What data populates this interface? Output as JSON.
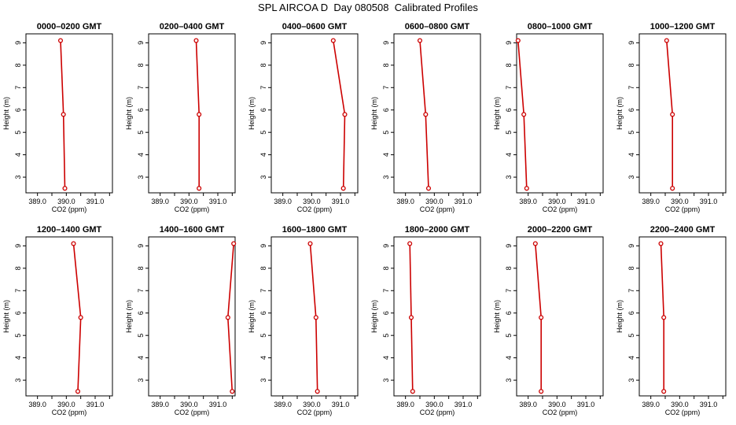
{
  "figure": {
    "title": "SPL AIRCOA D  Day 080508  Calibrated Profiles",
    "line_color": "#cc0000",
    "marker_color": "#cc0000"
  },
  "chart_data": [
    {
      "type": "line",
      "title": "0000–0200 GMT",
      "xlabel": "CO2 (ppm)",
      "ylabel": "Height (m)",
      "xlim": [
        388.6,
        391.6
      ],
      "ylim": [
        2.3,
        9.4
      ],
      "xticks": [
        "389.0",
        "390.0",
        "391.0"
      ],
      "yticks": [
        "3",
        "4",
        "5",
        "6",
        "7",
        "8",
        "9"
      ],
      "series": [
        {
          "x": [
            389.95,
            389.9,
            389.8
          ],
          "y": [
            2.5,
            5.8,
            9.1
          ]
        }
      ]
    },
    {
      "type": "line",
      "title": "0200–0400 GMT",
      "xlabel": "CO2 (ppm)",
      "ylabel": "Height (m)",
      "xlim": [
        388.6,
        391.6
      ],
      "ylim": [
        2.3,
        9.4
      ],
      "xticks": [
        "389.0",
        "390.0",
        "391.0"
      ],
      "yticks": [
        "3",
        "4",
        "5",
        "6",
        "7",
        "8",
        "9"
      ],
      "series": [
        {
          "x": [
            390.35,
            390.35,
            390.25
          ],
          "y": [
            2.5,
            5.8,
            9.1
          ]
        }
      ]
    },
    {
      "type": "line",
      "title": "0400–0600 GMT",
      "xlabel": "CO2 (ppm)",
      "ylabel": "Height (m)",
      "xlim": [
        388.6,
        391.6
      ],
      "ylim": [
        2.3,
        9.4
      ],
      "xticks": [
        "389.0",
        "390.0",
        "391.0"
      ],
      "yticks": [
        "3",
        "4",
        "5",
        "6",
        "7",
        "8",
        "9"
      ],
      "series": [
        {
          "x": [
            391.1,
            391.15,
            390.75
          ],
          "y": [
            2.5,
            5.8,
            9.1
          ]
        }
      ]
    },
    {
      "type": "line",
      "title": "0600–0800 GMT",
      "xlabel": "CO2 (ppm)",
      "ylabel": "Height (m)",
      "xlim": [
        388.6,
        391.6
      ],
      "ylim": [
        2.3,
        9.4
      ],
      "xticks": [
        "389.0",
        "390.0",
        "391.0"
      ],
      "yticks": [
        "3",
        "4",
        "5",
        "6",
        "7",
        "8",
        "9"
      ],
      "series": [
        {
          "x": [
            389.8,
            389.7,
            389.5
          ],
          "y": [
            2.5,
            5.8,
            9.1
          ]
        }
      ]
    },
    {
      "type": "line",
      "title": "0800–1000 GMT",
      "xlabel": "CO2 (ppm)",
      "ylabel": "Height (m)",
      "xlim": [
        388.6,
        391.6
      ],
      "ylim": [
        2.3,
        9.4
      ],
      "xticks": [
        "389.0",
        "390.0",
        "391.0"
      ],
      "yticks": [
        "3",
        "4",
        "5",
        "6",
        "7",
        "8",
        "9"
      ],
      "series": [
        {
          "x": [
            388.95,
            388.85,
            388.65
          ],
          "y": [
            2.5,
            5.8,
            9.1
          ]
        }
      ]
    },
    {
      "type": "line",
      "title": "1000–1200 GMT",
      "xlabel": "CO2 (ppm)",
      "ylabel": "Height (m)",
      "xlim": [
        388.6,
        391.6
      ],
      "ylim": [
        2.3,
        9.4
      ],
      "xticks": [
        "389.0",
        "390.0",
        "391.0"
      ],
      "yticks": [
        "3",
        "4",
        "5",
        "6",
        "7",
        "8",
        "9"
      ],
      "series": [
        {
          "x": [
            389.75,
            389.75,
            389.55
          ],
          "y": [
            2.5,
            5.8,
            9.1
          ]
        }
      ]
    },
    {
      "type": "line",
      "title": "1200–1400 GMT",
      "xlabel": "CO2 (ppm)",
      "ylabel": "Height (m)",
      "xlim": [
        388.6,
        391.6
      ],
      "ylim": [
        2.3,
        9.4
      ],
      "xticks": [
        "389.0",
        "390.0",
        "391.0"
      ],
      "yticks": [
        "3",
        "4",
        "5",
        "6",
        "7",
        "8",
        "9"
      ],
      "series": [
        {
          "x": [
            390.4,
            390.5,
            390.25
          ],
          "y": [
            2.5,
            5.8,
            9.1
          ]
        }
      ]
    },
    {
      "type": "line",
      "title": "1400–1600 GMT",
      "xlabel": "CO2 (ppm)",
      "ylabel": "Height (m)",
      "xlim": [
        388.6,
        391.6
      ],
      "ylim": [
        2.3,
        9.4
      ],
      "xticks": [
        "389.0",
        "390.0",
        "391.0"
      ],
      "yticks": [
        "3",
        "4",
        "5",
        "6",
        "7",
        "8",
        "9"
      ],
      "series": [
        {
          "x": [
            391.5,
            391.35,
            391.55
          ],
          "y": [
            2.5,
            5.8,
            9.1
          ]
        }
      ]
    },
    {
      "type": "line",
      "title": "1600–1800 GMT",
      "xlabel": "CO2 (ppm)",
      "ylabel": "Height (m)",
      "xlim": [
        388.6,
        391.6
      ],
      "ylim": [
        2.3,
        9.4
      ],
      "xticks": [
        "389.0",
        "390.0",
        "391.0"
      ],
      "yticks": [
        "3",
        "4",
        "5",
        "6",
        "7",
        "8",
        "9"
      ],
      "series": [
        {
          "x": [
            390.2,
            390.15,
            389.95
          ],
          "y": [
            2.5,
            5.8,
            9.1
          ]
        }
      ]
    },
    {
      "type": "line",
      "title": "1800–2000 GMT",
      "xlabel": "CO2 (ppm)",
      "ylabel": "Height (m)",
      "xlim": [
        388.6,
        391.6
      ],
      "ylim": [
        2.3,
        9.4
      ],
      "xticks": [
        "389.0",
        "390.0",
        "391.0"
      ],
      "yticks": [
        "3",
        "4",
        "5",
        "6",
        "7",
        "8",
        "9"
      ],
      "series": [
        {
          "x": [
            389.25,
            389.2,
            389.15
          ],
          "y": [
            2.5,
            5.8,
            9.1
          ]
        }
      ]
    },
    {
      "type": "line",
      "title": "2000–2200 GMT",
      "xlabel": "CO2 (ppm)",
      "ylabel": "Height (m)",
      "xlim": [
        388.6,
        391.6
      ],
      "ylim": [
        2.3,
        9.4
      ],
      "xticks": [
        "389.0",
        "390.0",
        "391.0"
      ],
      "yticks": [
        "3",
        "4",
        "5",
        "6",
        "7",
        "8",
        "9"
      ],
      "series": [
        {
          "x": [
            389.45,
            389.45,
            389.25
          ],
          "y": [
            2.5,
            5.8,
            9.1
          ]
        }
      ]
    },
    {
      "type": "line",
      "title": "2200–2400 GMT",
      "xlabel": "CO2 (ppm)",
      "ylabel": "Height (m)",
      "xlim": [
        388.6,
        391.6
      ],
      "ylim": [
        2.3,
        9.4
      ],
      "xticks": [
        "389.0",
        "390.0",
        "391.0"
      ],
      "yticks": [
        "3",
        "4",
        "5",
        "6",
        "7",
        "8",
        "9"
      ],
      "series": [
        {
          "x": [
            389.45,
            389.45,
            389.35
          ],
          "y": [
            2.5,
            5.8,
            9.1
          ]
        }
      ]
    }
  ]
}
